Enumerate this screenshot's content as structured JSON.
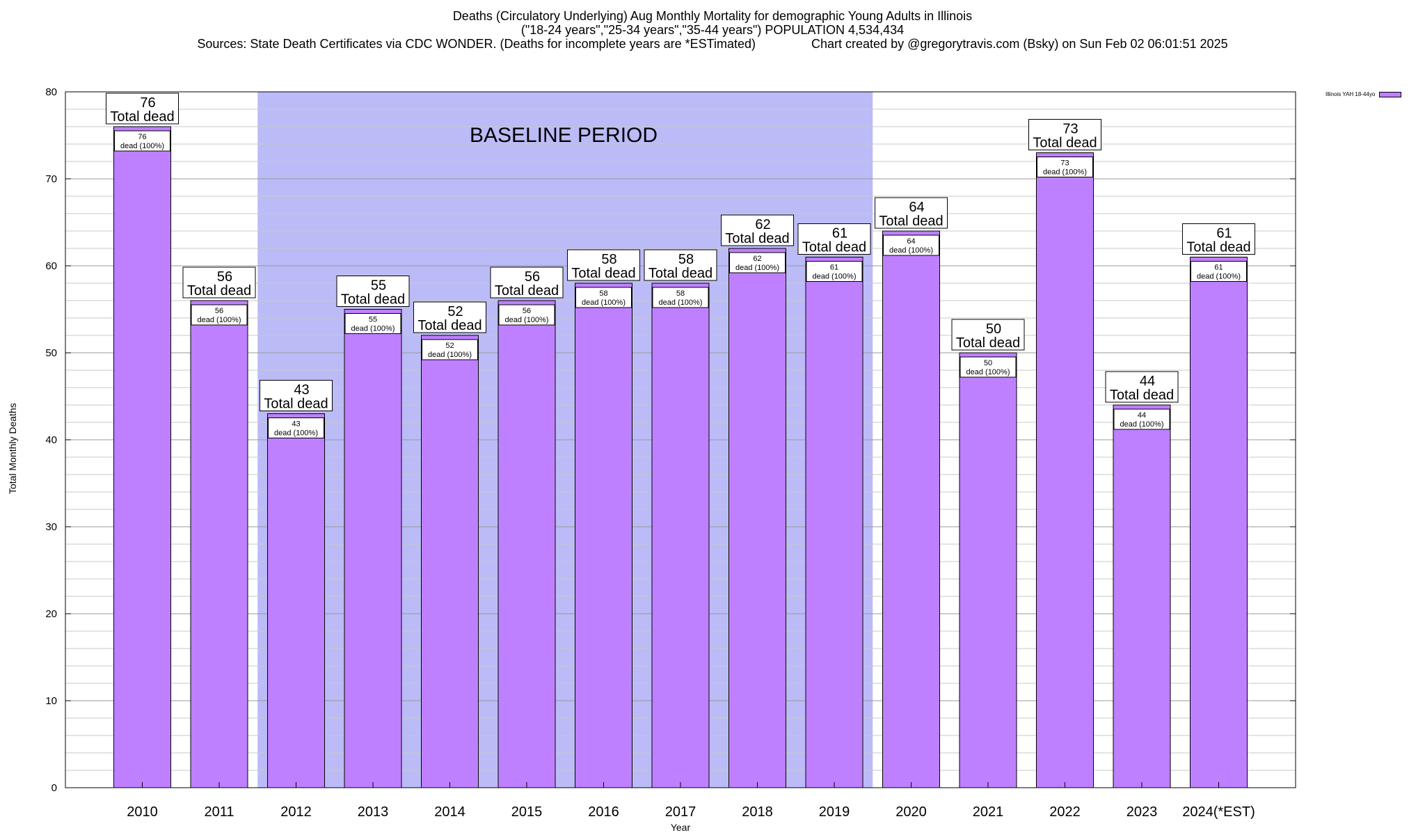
{
  "title_lines": [
    "Deaths (Circulatory Underlying) Aug Monthly Mortality for demographic Young Adults in Illinois",
    "(\"18-24 years\",\"25-34 years\",\"35-44 years\") POPULATION 4,534,434",
    "Sources: State Death Certificates via CDC WONDER. (Deaths for incomplete years are *ESTimated)                Chart created by @gregorytravis.com (Bsky) on Sun Feb 02 06:01:51 2025"
  ],
  "legend_label": "Illinois YAH 18-44yo",
  "colors": {
    "bar": "#bf80ff",
    "baseline": "#bbbbf7"
  },
  "chart_data": {
    "type": "bar",
    "title": "Deaths (Circulatory Underlying) Aug Monthly Mortality for demographic Young Adults in Illinois",
    "xlabel": "Year",
    "ylabel": "Total Monthly Deaths",
    "ylim": [
      0,
      80
    ],
    "yticks": [
      0,
      10,
      20,
      30,
      40,
      50,
      60,
      70,
      80
    ],
    "grid": true,
    "legend_position": "top-right",
    "categories": [
      "2010",
      "2011",
      "2012",
      "2013",
      "2014",
      "2015",
      "2016",
      "2017",
      "2018",
      "2019",
      "2020",
      "2021",
      "2022",
      "2023",
      "2024(*EST)"
    ],
    "series": [
      {
        "name": "Illinois YAH 18-44yo",
        "values": [
          76,
          56,
          43,
          55,
          52,
          56,
          58,
          58,
          62,
          61,
          64,
          50,
          73,
          44,
          61
        ]
      }
    ],
    "total_label": "Total dead",
    "inner_label": "dead (100%)",
    "annotation": {
      "text": "BASELINE PERIOD",
      "start_category": "2012",
      "end_category": "2019"
    }
  }
}
